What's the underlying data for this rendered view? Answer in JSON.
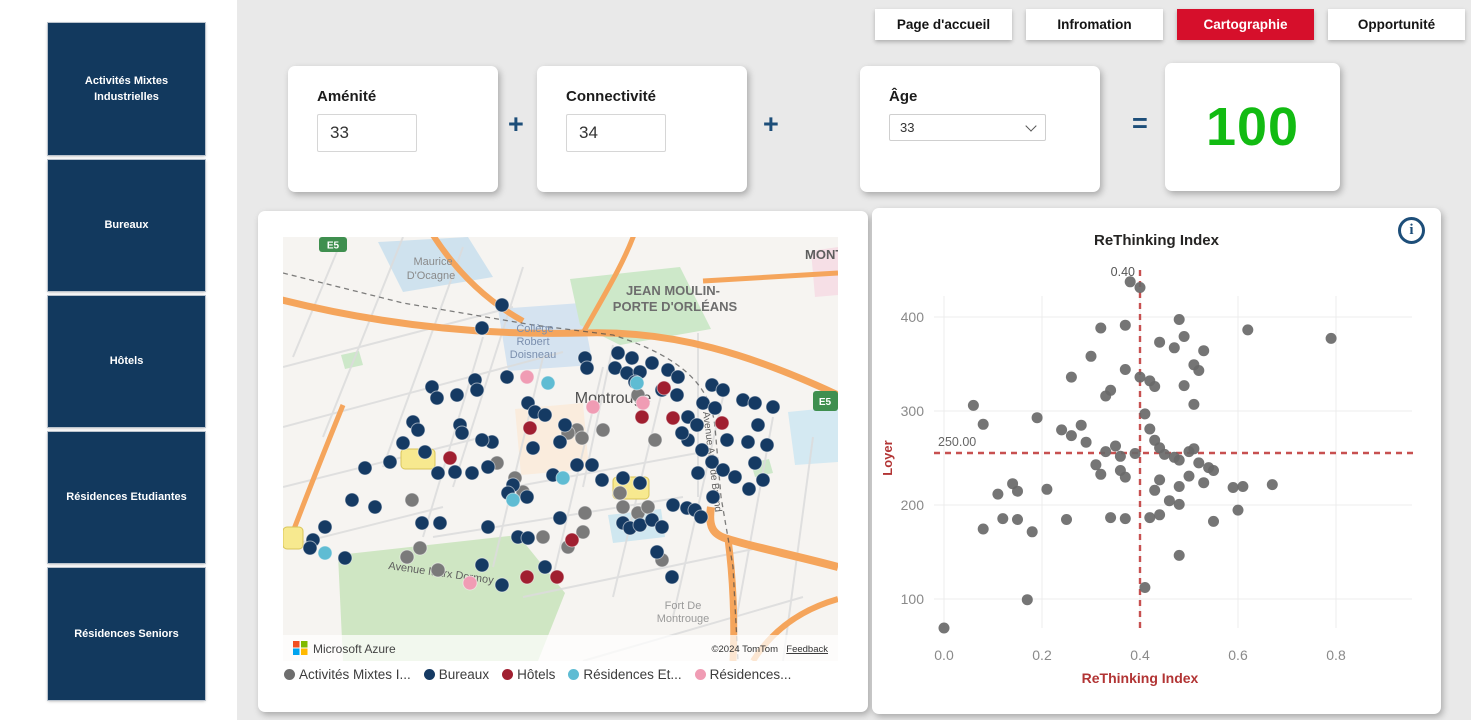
{
  "app": {
    "background": "#e9e9e9",
    "accent_red": "#d60f2b",
    "navy": "#12395e"
  },
  "nav": {
    "tabs": [
      {
        "label": "Page d'accueil",
        "active": false
      },
      {
        "label": "Infromation",
        "active": false
      },
      {
        "label": "Cartographie",
        "active": true
      },
      {
        "label": "Opportunité",
        "active": false
      }
    ],
    "active_color": "#d60f2b"
  },
  "sidebar": {
    "button_color": "#12395e",
    "items": [
      {
        "label": "Activités Mixtes Industrielles"
      },
      {
        "label": "Bureaux"
      },
      {
        "label": "Hôtels"
      },
      {
        "label": "Résidences Etudiantes"
      },
      {
        "label": "Résidences Seniors"
      }
    ]
  },
  "calculator": {
    "amenite": {
      "label": "Aménité",
      "value": "33"
    },
    "connectivite": {
      "label": "Connectivité",
      "value": "34"
    },
    "age": {
      "label": "Âge",
      "value": "33"
    },
    "plus": "+",
    "equals": "=",
    "result": "100",
    "result_color": "#12bb12",
    "operator_color": "#1d4e79"
  },
  "map": {
    "labels": {
      "street_top1": "Maurice",
      "street_top2": "D'Ocagne",
      "district1": "JEAN MOULIN-",
      "district2": "PORTE D'ORLÉANS",
      "corner": "MONT:",
      "college1": "Collège",
      "college2": "Robert",
      "college3": "Doisneau",
      "city": "Montrouge",
      "avenue_vertical": "Avenue Aristide Briand",
      "avenue_bottom": "Avenue Marx Dormoy",
      "fort1": "Fort De",
      "fort2": "Montrouge",
      "badge_e5a": "E5",
      "badge_e5b": "E5"
    },
    "attribution": {
      "provider": "Microsoft Azure",
      "copyright": "©2024 TomTom",
      "feedback": "Feedback"
    },
    "legend": [
      {
        "label": "Activités Mixtes I...",
        "color": "#6e6e6e"
      },
      {
        "label": "Bureaux",
        "color": "#153a63"
      },
      {
        "label": "Hôtels",
        "color": "#a01f30"
      },
      {
        "label": "Résidences Et...",
        "color": "#5fbcd3"
      },
      {
        "label": "Résidences...",
        "color": "#f09cb4"
      }
    ],
    "point_colors": {
      "activites": "#7a7a7a",
      "bureaux": "#153a63",
      "hotels": "#a01f30",
      "residences_etudiantes": "#5fbcd3",
      "residences_seniors": "#f09cb4"
    },
    "points": {
      "activites": [
        [
          294,
          193
        ],
        [
          320,
          193
        ],
        [
          355,
          158
        ],
        [
          129,
          263
        ],
        [
          137,
          311
        ],
        [
          155,
          333
        ],
        [
          302,
          276
        ],
        [
          337,
          256
        ],
        [
          379,
          323
        ],
        [
          124,
          320
        ],
        [
          299,
          201
        ],
        [
          285,
          196
        ],
        [
          372,
          203
        ],
        [
          214,
          226
        ],
        [
          232,
          241
        ],
        [
          240,
          255
        ],
        [
          355,
          276
        ],
        [
          365,
          270
        ],
        [
          340,
          270
        ],
        [
          260,
          300
        ],
        [
          285,
          310
        ],
        [
          300,
          295
        ]
      ],
      "bureaux": [
        [
          219,
          68
        ],
        [
          199,
          91
        ],
        [
          302,
          121
        ],
        [
          335,
          116
        ],
        [
          349,
          121
        ],
        [
          369,
          126
        ],
        [
          332,
          131
        ],
        [
          385,
          133
        ],
        [
          395,
          140
        ],
        [
          304,
          131
        ],
        [
          429,
          148
        ],
        [
          440,
          153
        ],
        [
          420,
          166
        ],
        [
          432,
          171
        ],
        [
          460,
          163
        ],
        [
          472,
          166
        ],
        [
          224,
          140
        ],
        [
          192,
          143
        ],
        [
          149,
          150
        ],
        [
          154,
          161
        ],
        [
          174,
          158
        ],
        [
          194,
          153
        ],
        [
          130,
          185
        ],
        [
          135,
          193
        ],
        [
          177,
          188
        ],
        [
          245,
          166
        ],
        [
          252,
          175
        ],
        [
          262,
          178
        ],
        [
          282,
          188
        ],
        [
          344,
          136
        ],
        [
          357,
          135
        ],
        [
          352,
          145
        ],
        [
          379,
          153
        ],
        [
          394,
          158
        ],
        [
          405,
          180
        ],
        [
          414,
          188
        ],
        [
          475,
          188
        ],
        [
          490,
          170
        ],
        [
          120,
          206
        ],
        [
          142,
          215
        ],
        [
          82,
          231
        ],
        [
          107,
          225
        ],
        [
          155,
          236
        ],
        [
          172,
          235
        ],
        [
          189,
          236
        ],
        [
          205,
          230
        ],
        [
          209,
          205
        ],
        [
          199,
          203
        ],
        [
          179,
          196
        ],
        [
          250,
          211
        ],
        [
          277,
          205
        ],
        [
          294,
          228
        ],
        [
          270,
          238
        ],
        [
          230,
          248
        ],
        [
          244,
          260
        ],
        [
          225,
          256
        ],
        [
          69,
          263
        ],
        [
          92,
          270
        ],
        [
          42,
          290
        ],
        [
          30,
          303
        ],
        [
          62,
          321
        ],
        [
          27,
          311
        ],
        [
          139,
          286
        ],
        [
          157,
          286
        ],
        [
          205,
          290
        ],
        [
          235,
          300
        ],
        [
          245,
          301
        ],
        [
          277,
          281
        ],
        [
          309,
          228
        ],
        [
          319,
          243
        ],
        [
          340,
          241
        ],
        [
          357,
          246
        ],
        [
          340,
          286
        ],
        [
          347,
          291
        ],
        [
          357,
          288
        ],
        [
          369,
          283
        ],
        [
          379,
          290
        ],
        [
          390,
          268
        ],
        [
          404,
          271
        ],
        [
          412,
          273
        ],
        [
          374,
          315
        ],
        [
          389,
          340
        ],
        [
          199,
          328
        ],
        [
          219,
          348
        ],
        [
          262,
          330
        ],
        [
          419,
          213
        ],
        [
          429,
          225
        ],
        [
          415,
          236
        ],
        [
          440,
          233
        ],
        [
          472,
          226
        ],
        [
          484,
          208
        ],
        [
          465,
          205
        ],
        [
          405,
          203
        ],
        [
          399,
          196
        ],
        [
          444,
          203
        ],
        [
          480,
          243
        ],
        [
          466,
          252
        ],
        [
          452,
          240
        ],
        [
          430,
          260
        ],
        [
          418,
          280
        ]
      ],
      "hotels": [
        [
          381,
          151
        ],
        [
          359,
          180
        ],
        [
          390,
          181
        ],
        [
          439,
          186
        ],
        [
          247,
          191
        ],
        [
          167,
          221
        ],
        [
          289,
          303
        ],
        [
          244,
          340
        ],
        [
          274,
          340
        ]
      ],
      "residences_etudiantes": [
        [
          265,
          146
        ],
        [
          354,
          146
        ],
        [
          280,
          241
        ],
        [
          230,
          263
        ],
        [
          42,
          316
        ]
      ],
      "residences_seniors": [
        [
          244,
          140
        ],
        [
          360,
          166
        ],
        [
          187,
          346
        ],
        [
          310,
          170
        ]
      ]
    }
  },
  "chart_data": {
    "type": "scatter",
    "title": "ReThinking Index",
    "xlabel": "ReThinking Index",
    "ylabel": "Loyer",
    "x_ticks": [
      0.0,
      0.2,
      0.4,
      0.6,
      0.8
    ],
    "x_tick_labels": [
      "0.0",
      "0.2",
      "0.4",
      "0.6",
      "0.8"
    ],
    "y_ticks": [
      100,
      200,
      300,
      400
    ],
    "y_tick_labels": [
      "100",
      "200",
      "300",
      "400"
    ],
    "xlim": [
      0,
      0.8
    ],
    "ylim": [
      40,
      460
    ],
    "grid": true,
    "ref_x": {
      "value": 0.4,
      "label": "0.40"
    },
    "ref_y": {
      "value": 250,
      "label": "250.00"
    },
    "point_color": "#696969",
    "axis_title_color": "#b23434",
    "ref_line_color": "#c75050",
    "points": [
      [
        0.38,
        432
      ],
      [
        0.4,
        426
      ],
      [
        0.48,
        392
      ],
      [
        0.32,
        383
      ],
      [
        0.37,
        386
      ],
      [
        0.62,
        381
      ],
      [
        0.79,
        372
      ],
      [
        0.44,
        368
      ],
      [
        0.47,
        362
      ],
      [
        0.49,
        374
      ],
      [
        0.53,
        359
      ],
      [
        0.3,
        353
      ],
      [
        0.51,
        344
      ],
      [
        0.52,
        338
      ],
      [
        0.26,
        331
      ],
      [
        0.37,
        339
      ],
      [
        0.4,
        331
      ],
      [
        0.42,
        327
      ],
      [
        0.43,
        321
      ],
      [
        0.34,
        317
      ],
      [
        0.33,
        311
      ],
      [
        0.49,
        322
      ],
      [
        0.06,
        301
      ],
      [
        0.51,
        302
      ],
      [
        0.08,
        281
      ],
      [
        0.19,
        288
      ],
      [
        0.24,
        275
      ],
      [
        0.26,
        269
      ],
      [
        0.28,
        280
      ],
      [
        0.29,
        262
      ],
      [
        0.35,
        258
      ],
      [
        0.41,
        292
      ],
      [
        0.42,
        276
      ],
      [
        0.43,
        264
      ],
      [
        0.44,
        256
      ],
      [
        0.33,
        252
      ],
      [
        0.36,
        247
      ],
      [
        0.39,
        250
      ],
      [
        0.45,
        249
      ],
      [
        0.47,
        246
      ],
      [
        0.5,
        252
      ],
      [
        0.51,
        255
      ],
      [
        0.48,
        243
      ],
      [
        0.52,
        240
      ],
      [
        0.31,
        238
      ],
      [
        0.32,
        228
      ],
      [
        0.36,
        232
      ],
      [
        0.37,
        225
      ],
      [
        0.54,
        235
      ],
      [
        0.55,
        232
      ],
      [
        0.44,
        222
      ],
      [
        0.48,
        215
      ],
      [
        0.5,
        226
      ],
      [
        0.53,
        219
      ],
      [
        0.11,
        207
      ],
      [
        0.14,
        218
      ],
      [
        0.15,
        210
      ],
      [
        0.21,
        212
      ],
      [
        0.43,
        211
      ],
      [
        0.59,
        214
      ],
      [
        0.61,
        215
      ],
      [
        0.67,
        217
      ],
      [
        0.46,
        200
      ],
      [
        0.48,
        196
      ],
      [
        0.6,
        190
      ],
      [
        0.12,
        181
      ],
      [
        0.15,
        180
      ],
      [
        0.25,
        180
      ],
      [
        0.34,
        182
      ],
      [
        0.37,
        181
      ],
      [
        0.42,
        182
      ],
      [
        0.44,
        185
      ],
      [
        0.55,
        178
      ],
      [
        0.08,
        170
      ],
      [
        0.18,
        167
      ],
      [
        0.48,
        142
      ],
      [
        0.41,
        108
      ],
      [
        0.17,
        95
      ],
      [
        0.0,
        65
      ]
    ]
  }
}
